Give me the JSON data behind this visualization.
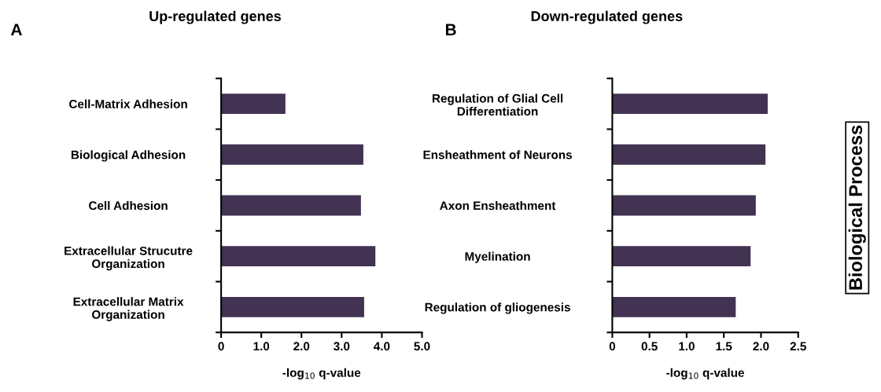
{
  "chart_data": [
    {
      "type": "bar",
      "orientation": "horizontal",
      "title": "Up-regulated genes",
      "xlabel": "-log$_{10}$ q-value",
      "categories": [
        "Cell-Matrix Adhesion",
        "Biological Adhesion",
        "Cell Adhesion",
        "Extracellular Strucutre\nOrganization",
        "Extracellular Matrix\nOrganization"
      ],
      "values": [
        1.6,
        3.54,
        3.48,
        3.84,
        3.56
      ],
      "color": "#413351",
      "xlim": [
        0,
        5
      ],
      "xticks": [
        0,
        {
          "value": 1,
          "label": "1.0"
        },
        {
          "value": 2,
          "label": "2.0"
        },
        {
          "value": 3,
          "label": "3.0"
        },
        {
          "value": 4,
          "label": "4.0"
        },
        {
          "value": 5,
          "label": "5.0"
        }
      ],
      "grid": false,
      "legend": false,
      "annotations": [
        "A"
      ]
    },
    {
      "type": "bar",
      "orientation": "horizontal",
      "title": "Down-regulated genes",
      "xlabel": "-log$_{10}$ q-value",
      "categories": [
        "Regulation of Glial Cell\nDifferentiation",
        "Ensheathment of Neurons",
        "Axon Ensheathment",
        "Myelination",
        "Regulation of gliogenesis"
      ],
      "values": [
        2.09,
        2.06,
        1.93,
        1.86,
        1.66
      ],
      "color": "#413351",
      "xlim": [
        0,
        2.5
      ],
      "xticks": [
        0,
        0.5,
        {
          "value": 1,
          "label": "1.0"
        },
        1.5,
        {
          "value": 2,
          "label": "2.0"
        },
        2.5
      ],
      "grid": false,
      "legend": false,
      "annotations": [
        "B",
        "Biological Process"
      ]
    }
  ]
}
